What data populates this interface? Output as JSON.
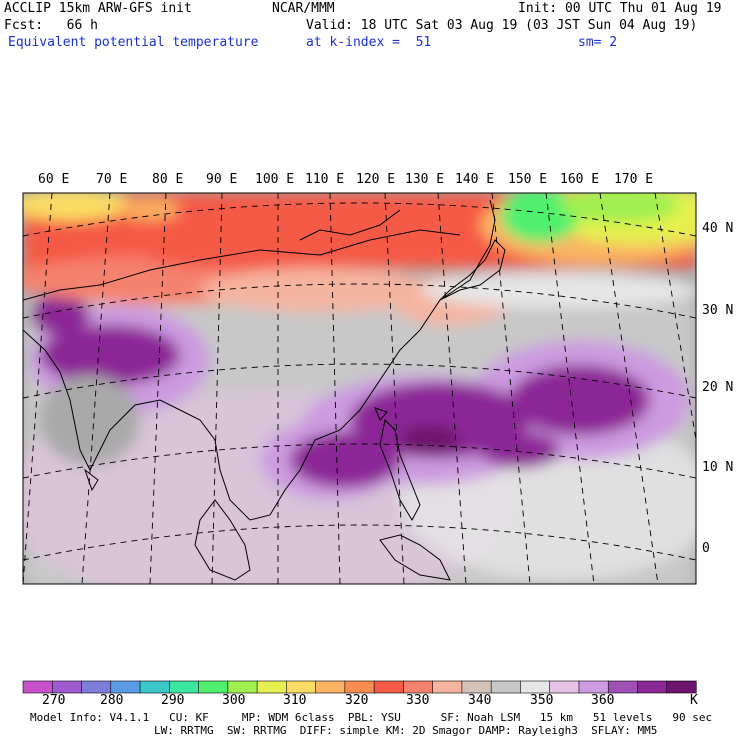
{
  "header": {
    "model": "ACCLIP 15km ARW-GFS init",
    "fcst": "Fcst:   66 h",
    "field": "Equivalent potential temperature",
    "org": "NCAR/MMM",
    "init": "Init: 00 UTC Thu 01 Aug 19",
    "valid": "Valid: 18 UTC Sat 03 Aug 19 (03 JST Sun 04 Aug 19)",
    "level": "at k-index =  51",
    "smooth": "sm= 2"
  },
  "map": {
    "lon_labels": [
      "60 E",
      "70 E",
      "80 E",
      "90 E",
      "100 E",
      "110 E",
      "120 E",
      "130 E",
      "140 E",
      "150 E",
      "160 E",
      "170 E"
    ],
    "lat_labels": [
      "40 N",
      "30 N",
      "20 N",
      "10 N",
      "0"
    ],
    "colors": {
      "ocean": "#a9a9a9",
      "coast": "#000000"
    }
  },
  "colorbar": {
    "ticks": [
      "270",
      "280",
      "290",
      "300",
      "310",
      "320",
      "330",
      "340",
      "350",
      "360"
    ],
    "unit": "K",
    "colors": [
      "#c850c8",
      "#a05ad2",
      "#7d7ddc",
      "#5a9be6",
      "#3cc8c8",
      "#3ce6a0",
      "#50f06e",
      "#a0f050",
      "#e6f050",
      "#fadc64",
      "#fab464",
      "#fa8c50",
      "#f55a46",
      "#f5826e",
      "#f5b4a0",
      "#d2c3b9",
      "#c8c8c8",
      "#e6e6e6",
      "#e6c3e6",
      "#cc9be0",
      "#a050b4",
      "#8c2896",
      "#6e146e"
    ]
  },
  "footer": {
    "line1": "Model Info: V4.1.1   CU: KF     MP: WDM 6class  PBL: YSU      SF: Noah LSM   15 km   51 levels   90 sec",
    "line2": "LW: RRTMG  SW: RRTMG  DIFF: simple KM: 2D Smagor DAMP: Rayleigh3  SFLAY: MM5"
  }
}
